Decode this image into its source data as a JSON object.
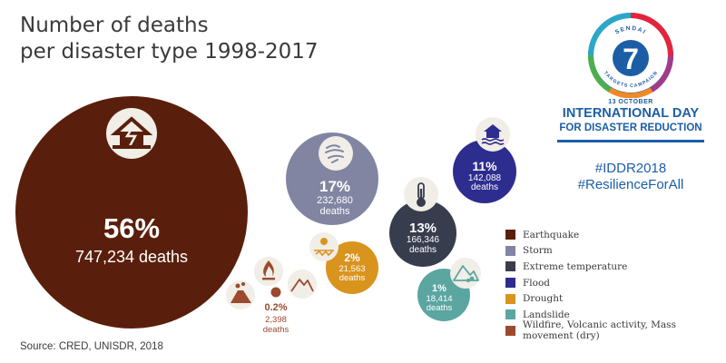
{
  "chart_data": {
    "type": "bubble",
    "title_lines": [
      "Number of deaths",
      "per disaster type 1998-2017"
    ],
    "series": [
      {
        "name": "Earthquake",
        "percent": "56%",
        "deaths": "747,234 deaths",
        "value": 747234,
        "color": "#5a1f0c",
        "icon": "collapsed-house-icon"
      },
      {
        "name": "Storm",
        "percent": "17%",
        "deaths_line1": "232,680",
        "deaths_line2": "deaths",
        "value": 232680,
        "color": "#8185a2",
        "icon": "storm-wind-icon"
      },
      {
        "name": "Extreme temperature",
        "percent": "13%",
        "deaths_line1": "166,346",
        "deaths_line2": "deaths",
        "value": 166346,
        "color": "#383d4e",
        "icon": "thermometer-icon"
      },
      {
        "name": "Flood",
        "percent": "11%",
        "deaths_line1": "142,088",
        "deaths_line2": "deaths",
        "value": 142088,
        "color": "#2d2c8f",
        "icon": "flooded-house-icon"
      },
      {
        "name": "Drought",
        "percent": "2%",
        "deaths_line1": "21,563",
        "deaths_line2": "deaths",
        "value": 21563,
        "color": "#d9941e",
        "icon": "drought-icon"
      },
      {
        "name": "Landslide",
        "percent": "1%",
        "deaths_line1": "18,414",
        "deaths_line2": "deaths",
        "value": 18414,
        "color": "#5ba6a1",
        "icon": "landslide-icon"
      },
      {
        "name": "Wildfire, Volcanic activity, Mass movement (dry)",
        "percent": "0.2%",
        "deaths_line1": "2,398",
        "deaths_line2": "deaths",
        "value": 2398,
        "color": "#9b4a2e",
        "icon": "wildfire-icon"
      }
    ]
  },
  "source": "Source: CRED, UNISDR, 2018",
  "campaign": {
    "logo_number": "7",
    "logo_top": "SENDAI",
    "logo_bottom": "TARGETS CAMPAIGN",
    "date": "13 OCTOBER",
    "name": "INTERNATIONAL DAY",
    "subname": "FOR DISASTER REDUCTION",
    "hashtags": [
      "#IDDR2018",
      "#ResilienceForAll"
    ]
  }
}
